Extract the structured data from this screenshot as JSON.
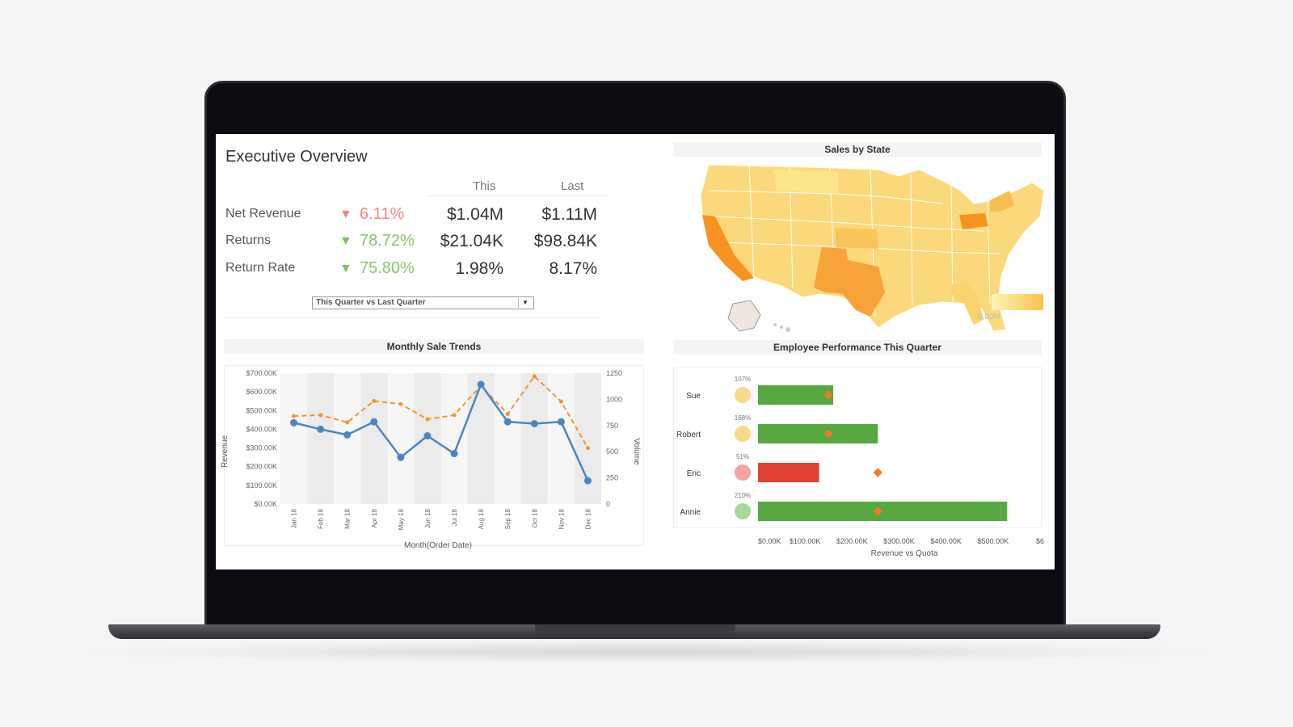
{
  "header": {
    "title": "Executive Overview"
  },
  "kpi": {
    "col_this": "This",
    "col_last": "Last",
    "rows": [
      {
        "label": "Net Revenue",
        "change": "6.11%",
        "direction": "down",
        "trend_color": "#ef8a80",
        "this": "$1.04M",
        "last": "$1.11M"
      },
      {
        "label": "Returns",
        "change": "78.72%",
        "direction": "down",
        "trend_color": "#86c66b",
        "this": "$21.04K",
        "last": "$98.84K"
      },
      {
        "label": "Return Rate",
        "change": "75.80%",
        "direction": "down",
        "trend_color": "#86c66b",
        "this": "1.98%",
        "last": "8.17%"
      }
    ]
  },
  "period_select": {
    "value": "This Quarter vs Last Quarter",
    "arrow": "▼"
  },
  "colors": {
    "revenue_line": "#4a86bd",
    "volume_line": "#f0952a",
    "bar_green": "#56a840",
    "bar_red": "#e04235",
    "target": "#f27b2a"
  },
  "icons": {
    "kpi_trend": "triangle-down-icon",
    "dropdown": "chevron-down-icon"
  },
  "chart_data": [
    {
      "type": "line",
      "title": "Monthly Sale Trends",
      "xlabel": "Month(Order Date)",
      "ylabel": "Revenue",
      "y2label": "Volume",
      "categories": [
        "Jan 18",
        "Feb 18",
        "Mar 18",
        "Apr 18",
        "May 18",
        "Jun 18",
        "Jul 18",
        "Aug 18",
        "Sep 18",
        "Oct 18",
        "Nov 18",
        "Dec 18"
      ],
      "yticks": [
        "$700.00K",
        "$600.00K",
        "$500.00K",
        "$400.00K",
        "$300.00K",
        "$200.00K",
        "$100.00K",
        "$0.00K"
      ],
      "y2ticks": [
        "1250",
        "1000",
        "750",
        "500",
        "250",
        "0"
      ],
      "ylim": [
        0,
        700000
      ],
      "y2lim": [
        0,
        1250
      ],
      "series": [
        {
          "axis": "left",
          "style": "solid",
          "values": [
            435000,
            400000,
            370000,
            440000,
            250000,
            365000,
            270000,
            640000,
            440000,
            430000,
            440000,
            125000
          ]
        },
        {
          "axis": "right",
          "style": "dashed",
          "values": [
            840,
            850,
            780,
            985,
            955,
            810,
            850,
            1130,
            860,
            1220,
            980,
            535
          ]
        }
      ]
    },
    {
      "type": "bar",
      "title": "Employee Performance This Quarter",
      "xlabel": "Revenue vs Quota",
      "xticks": [
        "$0.00K",
        "$100.00K",
        "$200.00K",
        "$300.00K",
        "$400.00K",
        "$500.00K",
        "$6"
      ],
      "xlim": [
        0,
        600000
      ],
      "categories": [
        "Sue",
        "Robert",
        "Eric",
        "Annie"
      ],
      "percent_to_quota": [
        "107%",
        "168%",
        "51%",
        "210%"
      ],
      "indicator_colors": [
        "#f9d98a",
        "#f9d98a",
        "#f2a3a3",
        "#a6d99a"
      ],
      "values": [
        160000,
        255000,
        130000,
        530000
      ],
      "targets": [
        150000,
        150000,
        255000,
        255000
      ]
    },
    {
      "type": "map",
      "title": "Sales by State",
      "legend_label": "0.00M",
      "highlighted_states": [
        "California",
        "Texas",
        "Pennsylvania",
        "Florida",
        "New York"
      ]
    }
  ]
}
